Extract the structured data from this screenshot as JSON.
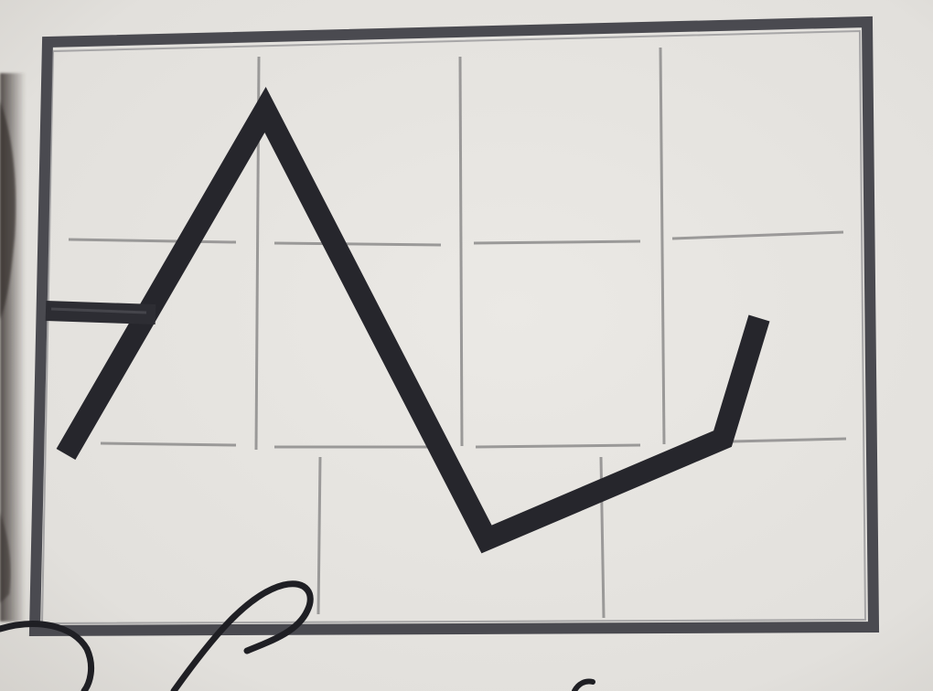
{
  "photo": {
    "subject": "paper-drawing",
    "colors": {
      "paper": "#e7e5e1",
      "paper_shadow": "#c9c6c1",
      "ink": "#26262c",
      "frame": "#4a4a50",
      "grid": "#8d8c8c",
      "dark_edge": "#2c2a29"
    }
  }
}
